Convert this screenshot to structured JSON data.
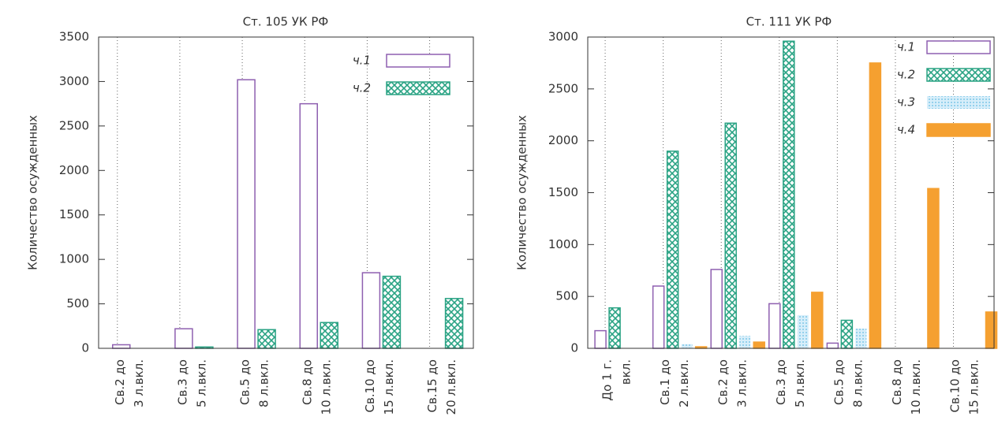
{
  "chart_data": [
    {
      "type": "bar",
      "title": "Ст. 105 УК РФ",
      "y_label": "Количество осужденных",
      "categories": [
        [
          "Св.2 до",
          "3 л.вкл."
        ],
        [
          "Св.3 до",
          "5 л.вкл."
        ],
        [
          "Св.5 до",
          "8 л.вкл."
        ],
        [
          "Св.8 до",
          "10 л.вкл."
        ],
        [
          "Св.10 до",
          "15 л.вкл."
        ],
        [
          "Св.15 до",
          "20 л.вкл."
        ]
      ],
      "series": [
        {
          "name": "ч.1",
          "color": "#8e5fb0",
          "values": [
            40,
            220,
            3020,
            2750,
            850,
            0
          ]
        },
        {
          "name": "ч.2",
          "color": "#2aa384",
          "values": [
            0,
            15,
            210,
            290,
            810,
            560
          ]
        }
      ],
      "ylim": [
        0,
        3500
      ],
      "yticks": [
        0,
        500,
        1000,
        1500,
        2000,
        2500,
        3000,
        3500
      ],
      "grid": true,
      "legend": "upper right"
    },
    {
      "type": "bar",
      "title": "Ст. 111 УК РФ",
      "y_label": "Количество осужденных",
      "categories": [
        [
          "До 1 г.",
          "вкл."
        ],
        [
          "Св.1 до",
          "2 л.вкл."
        ],
        [
          "Св.2 до",
          "3 л.вкл."
        ],
        [
          "Св.3 до",
          "5 л.вкл."
        ],
        [
          "Св.5 до",
          "8 л.вкл."
        ],
        [
          "Св.8 до",
          "10 л.вкл."
        ],
        [
          "Св.10 до",
          "15 л.вкл."
        ]
      ],
      "series": [
        {
          "name": "ч.1",
          "color": "#8e5fb0",
          "values": [
            170,
            600,
            760,
            430,
            50,
            0,
            0
          ]
        },
        {
          "name": "ч.2",
          "color": "#2aa384",
          "values": [
            390,
            1900,
            2170,
            2960,
            270,
            0,
            0
          ]
        },
        {
          "name": "ч.3",
          "color": "#7fc8e8",
          "values": [
            0,
            40,
            120,
            320,
            190,
            0,
            0
          ]
        },
        {
          "name": "ч.4",
          "color": "#f5a030",
          "values": [
            0,
            15,
            60,
            540,
            2750,
            1540,
            350
          ]
        }
      ],
      "ylim": [
        0,
        3000
      ],
      "yticks": [
        0,
        500,
        1000,
        1500,
        2000,
        2500,
        3000
      ],
      "grid": true,
      "legend": "upper right"
    }
  ]
}
